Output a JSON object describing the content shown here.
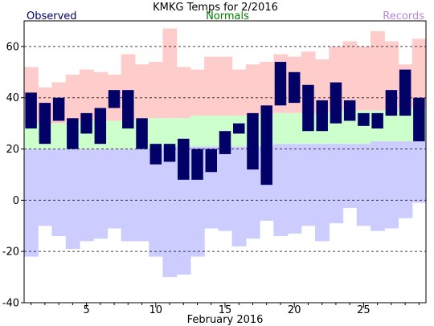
{
  "chart_data": {
    "type": "bar",
    "title": "KMKG Temps for 2/2016",
    "xlabel": "February 2016",
    "ylabel": "",
    "ylim": [
      -40,
      70
    ],
    "yticks": [
      -40,
      -20,
      0,
      20,
      40,
      60
    ],
    "xticks": [
      5,
      10,
      15,
      20,
      25
    ],
    "grid": "dashed horizontal",
    "legend": [
      {
        "name": "Observed",
        "position": "top-left",
        "color": "#000066"
      },
      {
        "name": "Normals",
        "position": "top-center",
        "color": "#008000"
      },
      {
        "name": "Records",
        "position": "top-right",
        "color": "#bb88dd"
      }
    ],
    "days": [
      1,
      2,
      3,
      4,
      5,
      6,
      7,
      8,
      9,
      10,
      11,
      12,
      13,
      14,
      15,
      16,
      17,
      18,
      19,
      20,
      21,
      22,
      23,
      24,
      25,
      26,
      27,
      28,
      29
    ],
    "record_high": [
      52,
      44,
      46,
      49,
      51,
      50,
      49,
      57,
      53,
      54,
      67,
      52,
      51,
      56,
      56,
      51,
      53,
      54,
      57,
      56,
      58,
      55,
      60,
      62,
      60,
      66,
      62,
      53,
      63
    ],
    "normal_high": [
      30,
      30,
      30,
      31,
      31,
      31,
      31,
      31,
      32,
      32,
      32,
      32,
      33,
      33,
      33,
      33,
      33,
      34,
      34,
      34,
      34,
      34,
      35,
      35,
      35,
      35,
      35,
      36,
      36
    ],
    "normal_low": [
      20,
      20,
      20,
      20,
      20,
      20,
      20,
      20,
      20,
      20,
      21,
      21,
      21,
      21,
      21,
      21,
      21,
      21,
      22,
      22,
      22,
      22,
      22,
      22,
      22,
      23,
      23,
      23,
      23
    ],
    "record_low": [
      -22,
      -10,
      -14,
      -19,
      -16,
      -15,
      -11,
      -16,
      -16,
      -22,
      -30,
      -29,
      -22,
      -11,
      -12,
      -18,
      -15,
      -8,
      -14,
      -13,
      -10,
      -16,
      -9,
      -3,
      -10,
      -12,
      -11,
      -7,
      -1
    ],
    "obs_high": [
      42,
      38,
      40,
      32,
      34,
      36,
      43,
      43,
      32,
      22,
      22,
      24,
      20,
      20,
      27,
      30,
      34,
      37,
      54,
      50,
      45,
      39,
      46,
      39,
      34,
      34,
      43,
      51,
      40
    ],
    "obs_low": [
      28,
      22,
      31,
      20,
      26,
      22,
      36,
      28,
      20,
      14,
      15,
      8,
      8,
      11,
      18,
      26,
      12,
      6,
      37,
      38,
      27,
      27,
      30,
      31,
      29,
      28,
      33,
      33,
      23
    ],
    "colors": {
      "records": "#ffcccc",
      "normals": "#ccffcc",
      "record_low_band": "#ccccff",
      "observed": "#000066",
      "grid": "#000000",
      "normals_text": "#008000",
      "records_text": "#bb88dd",
      "observed_text": "#000066"
    }
  }
}
